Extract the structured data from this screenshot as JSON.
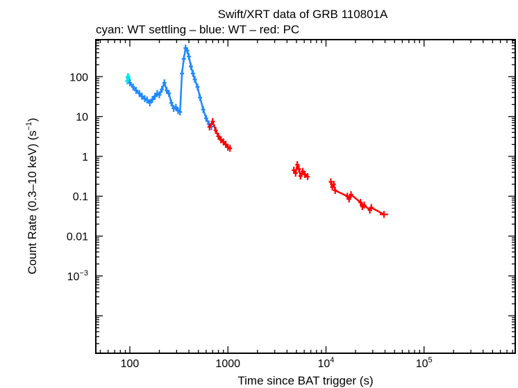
{
  "chart_data": {
    "type": "scatter",
    "title": "Swift/XRT data of GRB 110801A",
    "subtitle": "cyan: WT settling – blue: WT – red: PC",
    "xlabel": "Time since BAT trigger (s)",
    "ylabel_main": "Count Rate (0.3–10 keV) (s",
    "ylabel_sup": "−1",
    "ylabel_tail": ")",
    "xscale": "log",
    "yscale": "log",
    "xlim": [
      45,
      850000
    ],
    "ylim": [
      1.15e-05,
      850
    ],
    "x_ticks": [
      {
        "value": 100,
        "label": "100"
      },
      {
        "value": 1000,
        "label": "1000"
      },
      {
        "value": 10000,
        "base": "10",
        "exp": "4"
      },
      {
        "value": 100000,
        "base": "10",
        "exp": "5"
      }
    ],
    "y_ticks": [
      {
        "value": 100,
        "label": "100"
      },
      {
        "value": 10,
        "label": "10"
      },
      {
        "value": 1,
        "label": "1"
      },
      {
        "value": 0.1,
        "label": "0.1"
      },
      {
        "value": 0.01,
        "label": "0.01"
      },
      {
        "value": 0.001,
        "base": "10",
        "exp": "−3"
      }
    ],
    "series": [
      {
        "name": "WT settling",
        "color": "#00e5ee",
        "x": [
          94,
          95,
          96,
          97,
          98
        ],
        "y": [
          78,
          95,
          100,
          92,
          82
        ]
      },
      {
        "name": "WT",
        "color": "#1e88ff",
        "x": [
          100,
          108,
          116,
          125,
          133,
          142,
          150,
          160,
          170,
          180,
          190,
          200,
          212,
          225,
          238,
          250,
          265,
          280,
          295,
          310,
          325,
          340,
          355,
          370,
          385,
          400,
          420,
          440,
          460,
          490,
          520,
          560,
          600,
          640,
          680
        ],
        "y": [
          70,
          55,
          45,
          38,
          32,
          28,
          26,
          22,
          27,
          32,
          38,
          35,
          48,
          70,
          45,
          38,
          22,
          16,
          17,
          14,
          13,
          120,
          280,
          520,
          450,
          320,
          180,
          120,
          85,
          55,
          30,
          15,
          9,
          6.5,
          5.6
        ]
      },
      {
        "name": "PC",
        "color": "#ff0000",
        "x": [
          650,
          700,
          750,
          800,
          850,
          900,
          950,
          1000,
          1050,
          4700,
          4900,
          5100,
          5300,
          5500,
          5800,
          6100,
          6500,
          11200,
          11600,
          12000,
          12400,
          16500,
          17200,
          18000,
          22500,
          23500,
          24500,
          28000,
          29000,
          39000
        ],
        "y": [
          5.5,
          7.5,
          4.5,
          3.2,
          2.6,
          2.3,
          2.0,
          1.7,
          1.6,
          0.45,
          0.38,
          0.62,
          0.48,
          0.32,
          0.42,
          0.35,
          0.31,
          0.23,
          0.17,
          0.2,
          0.14,
          0.1,
          0.085,
          0.11,
          0.07,
          0.055,
          0.06,
          0.045,
          0.052,
          0.035
        ]
      }
    ]
  }
}
